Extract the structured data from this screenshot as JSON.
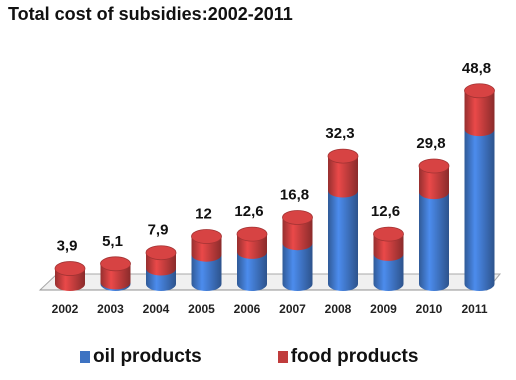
{
  "chart_data": {
    "type": "bar",
    "stacked": true,
    "style": "3d-cylinder",
    "title": "Total cost of subsidies:2002-2011",
    "categories": [
      "2002",
      "2003",
      "2004",
      "2005",
      "2006",
      "2007",
      "2008",
      "2009",
      "2010",
      "2011"
    ],
    "total_labels": [
      "3,9",
      "5,1",
      "7,9",
      "12",
      "12,6",
      "16,8",
      "32,3",
      "12,6",
      "29,8",
      "48,8"
    ],
    "totals": [
      3.9,
      5.1,
      7.9,
      12,
      12.6,
      16.8,
      32.3,
      12.6,
      29.8,
      48.8
    ],
    "series": [
      {
        "name": "oil products",
        "color": "#3e73c2",
        "values": [
          0.0,
          0.4,
          3.9,
          7.4,
          8.1,
          10.3,
          23.6,
          7.6,
          23.2,
          39.1
        ]
      },
      {
        "name": "food products",
        "color": "#c03c3c",
        "values": [
          3.9,
          4.7,
          4.0,
          4.6,
          4.5,
          6.5,
          8.7,
          5.0,
          6.6,
          9.7
        ]
      }
    ],
    "ylim": [
      0,
      50
    ],
    "grid": false,
    "legend_position": "bottom"
  }
}
